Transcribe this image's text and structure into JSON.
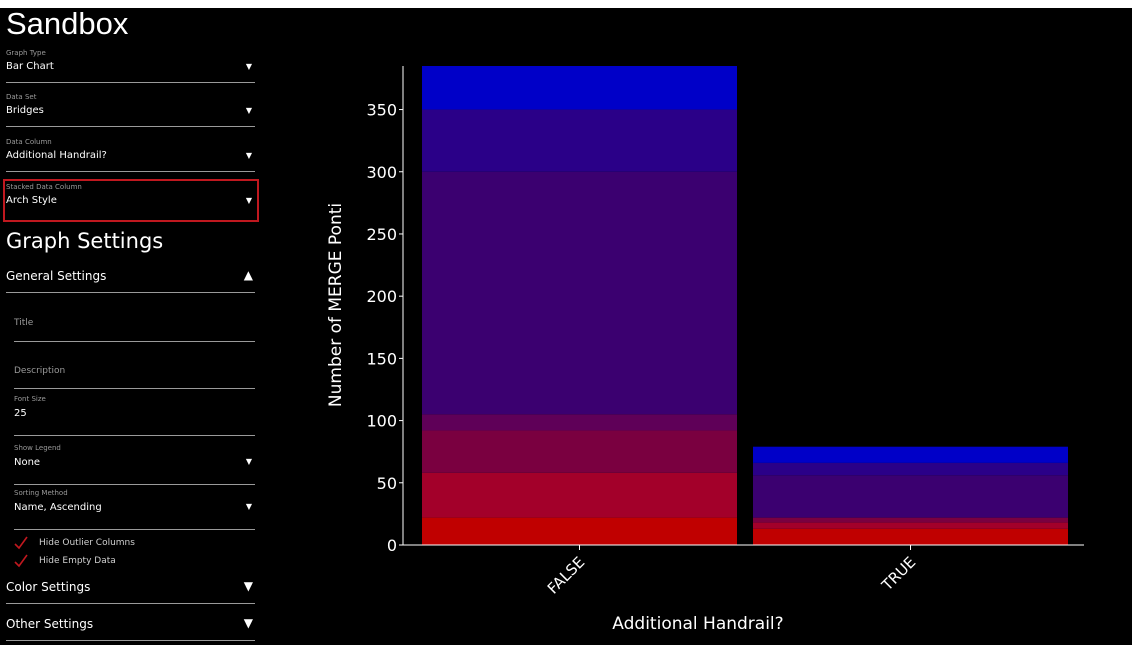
{
  "sidebar": {
    "title": "Sandbox",
    "fields": {
      "graph_type": {
        "label": "Graph Type",
        "value": "Bar Chart"
      },
      "data_set": {
        "label": "Data Set",
        "value": "Bridges"
      },
      "data_column": {
        "label": "Data Column",
        "value": "Additional Handrail?"
      },
      "stacked_column": {
        "label": "Stacked Data Column",
        "value": "Arch Style"
      }
    },
    "graph_settings_title": "Graph Settings",
    "general": {
      "label": "General Settings",
      "icon": "triangle-up-icon",
      "title_placeholder": "Title",
      "description_placeholder": "Description",
      "font_size": {
        "label": "Font Size",
        "value": "25"
      },
      "show_legend": {
        "label": "Show Legend",
        "value": "None"
      },
      "sorting": {
        "label": "Sorting Method",
        "value": "Name, Ascending"
      },
      "hide_outlier": "Hide Outlier Columns",
      "hide_empty": "Hide Empty Data"
    },
    "color_settings": {
      "label": "Color Settings",
      "icon": "triangle-down-icon"
    },
    "other_settings": {
      "label": "Other Settings",
      "icon": "triangle-down-icon"
    },
    "highlight_color": "#c0181f",
    "check_color": "#c0181f"
  },
  "chart_data": {
    "type": "bar",
    "stacked": true,
    "xlabel": "Additional Handrail?",
    "ylabel": "Number of MERGE Ponti",
    "ylim": [
      0,
      385
    ],
    "yticks": [
      0,
      50,
      100,
      150,
      200,
      250,
      300,
      350
    ],
    "categories": [
      "FALSE",
      "TRUE"
    ],
    "segments": [
      [
        {
          "top": 22,
          "color": "#c00000"
        },
        {
          "top": 58,
          "color": "#a3002a"
        },
        {
          "top": 92,
          "color": "#7a0040"
        },
        {
          "top": 105,
          "color": "#5f0058"
        },
        {
          "top": 300,
          "color": "#3b0070"
        },
        {
          "top": 350,
          "color": "#2a0088"
        },
        {
          "top": 385,
          "color": "#0000c8"
        }
      ],
      [
        {
          "top": 13,
          "color": "#c00000"
        },
        {
          "top": 18,
          "color": "#a3002a"
        },
        {
          "top": 22,
          "color": "#7a0040"
        },
        {
          "top": 56,
          "color": "#3b0070"
        },
        {
          "top": 66,
          "color": "#2a0088"
        },
        {
          "top": 79,
          "color": "#0000c8"
        }
      ]
    ]
  }
}
